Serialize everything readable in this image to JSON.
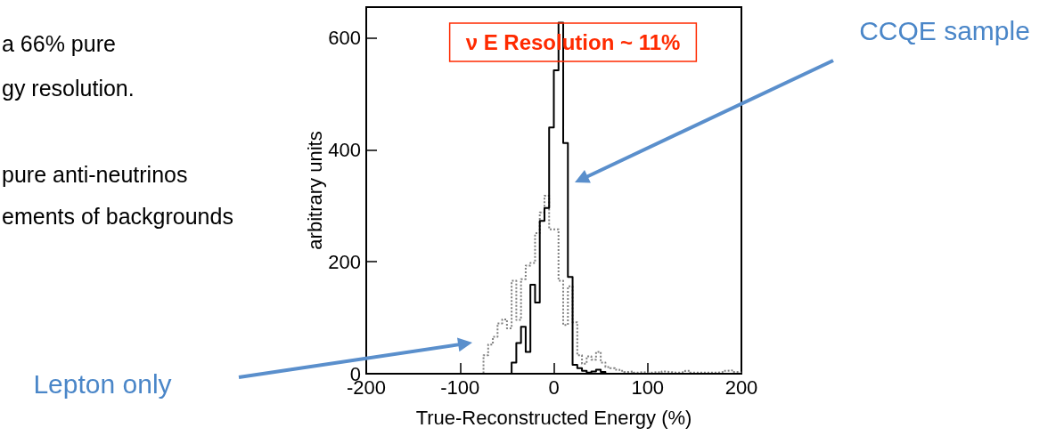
{
  "chart_data": {
    "type": "histogram",
    "xlabel": "True-Reconstructed Energy (%)",
    "ylabel": "arbitrary units",
    "bins": [
      -200,
      -195,
      -190,
      -185,
      -180,
      -175,
      -170,
      -165,
      -160,
      -155,
      -150,
      -145,
      -140,
      -135,
      -130,
      -125,
      -120,
      -115,
      -110,
      -105,
      -100,
      -95,
      -90,
      -85,
      -80,
      -75,
      -70,
      -65,
      -60,
      -55,
      -50,
      -45,
      -40,
      -35,
      -30,
      -25,
      -20,
      -15,
      -10,
      -5,
      0,
      5,
      10,
      15,
      20,
      25,
      30,
      35,
      40,
      45,
      50,
      55,
      60,
      65,
      70,
      75,
      80,
      85,
      90,
      95,
      100,
      105,
      110,
      115,
      120,
      125,
      130,
      135,
      140,
      145,
      150,
      155,
      160,
      165,
      170,
      175,
      180,
      185,
      190,
      195,
      200
    ],
    "series": [
      {
        "color": "#000000",
        "line_style": "solid",
        "values": [
          0,
          0,
          0,
          0,
          0,
          0,
          0,
          0,
          0,
          0,
          0,
          0,
          0,
          0,
          0,
          0,
          0,
          0,
          0,
          0,
          0,
          0,
          0,
          0,
          0,
          0,
          0,
          0,
          0,
          0,
          0,
          20,
          55,
          84,
          39,
          159,
          127,
          273,
          296,
          440,
          542,
          627,
          412,
          173,
          16,
          10,
          5,
          2,
          4,
          7,
          3,
          0,
          0,
          0,
          0,
          0,
          0,
          0,
          0,
          0,
          0,
          0,
          0,
          0,
          0,
          0,
          0,
          0,
          0,
          0,
          0,
          0,
          0,
          0,
          0,
          0,
          0,
          0,
          0,
          0
        ]
      },
      {
        "color": "#808080",
        "line_style": "dotted",
        "values": [
          0,
          0,
          0,
          0,
          0,
          0,
          0,
          0,
          0,
          0,
          0,
          0,
          0,
          0,
          0,
          0,
          0,
          0,
          0,
          0,
          0,
          0,
          0,
          0,
          0,
          33,
          52,
          66,
          90,
          97,
          81,
          166,
          96,
          169,
          193,
          198,
          251,
          288,
          318,
          258,
          258,
          166,
          87,
          156,
          92,
          33,
          18,
          31,
          25,
          39,
          20,
          12,
          10,
          7,
          5,
          3,
          4,
          2,
          3,
          2,
          2,
          3,
          2,
          4,
          3,
          2,
          2,
          3,
          5,
          2,
          2,
          2,
          2,
          2,
          2,
          3,
          5,
          6,
          3,
          2
        ]
      }
    ],
    "xlim": [
      -200,
      200
    ],
    "xticks": [
      -200,
      -100,
      0,
      100,
      200
    ],
    "ylim": [
      0,
      655
    ],
    "yticks": [
      0,
      200,
      400,
      600
    ],
    "grid": false,
    "marker": "none",
    "annotations": [
      "ν E Resolution ~ 11%",
      "a 66% pure",
      "gy resolution.",
      "pure anti-neutrinos",
      "ements of backgrounds",
      "CCQE sample",
      "Lepton only"
    ]
  }
}
